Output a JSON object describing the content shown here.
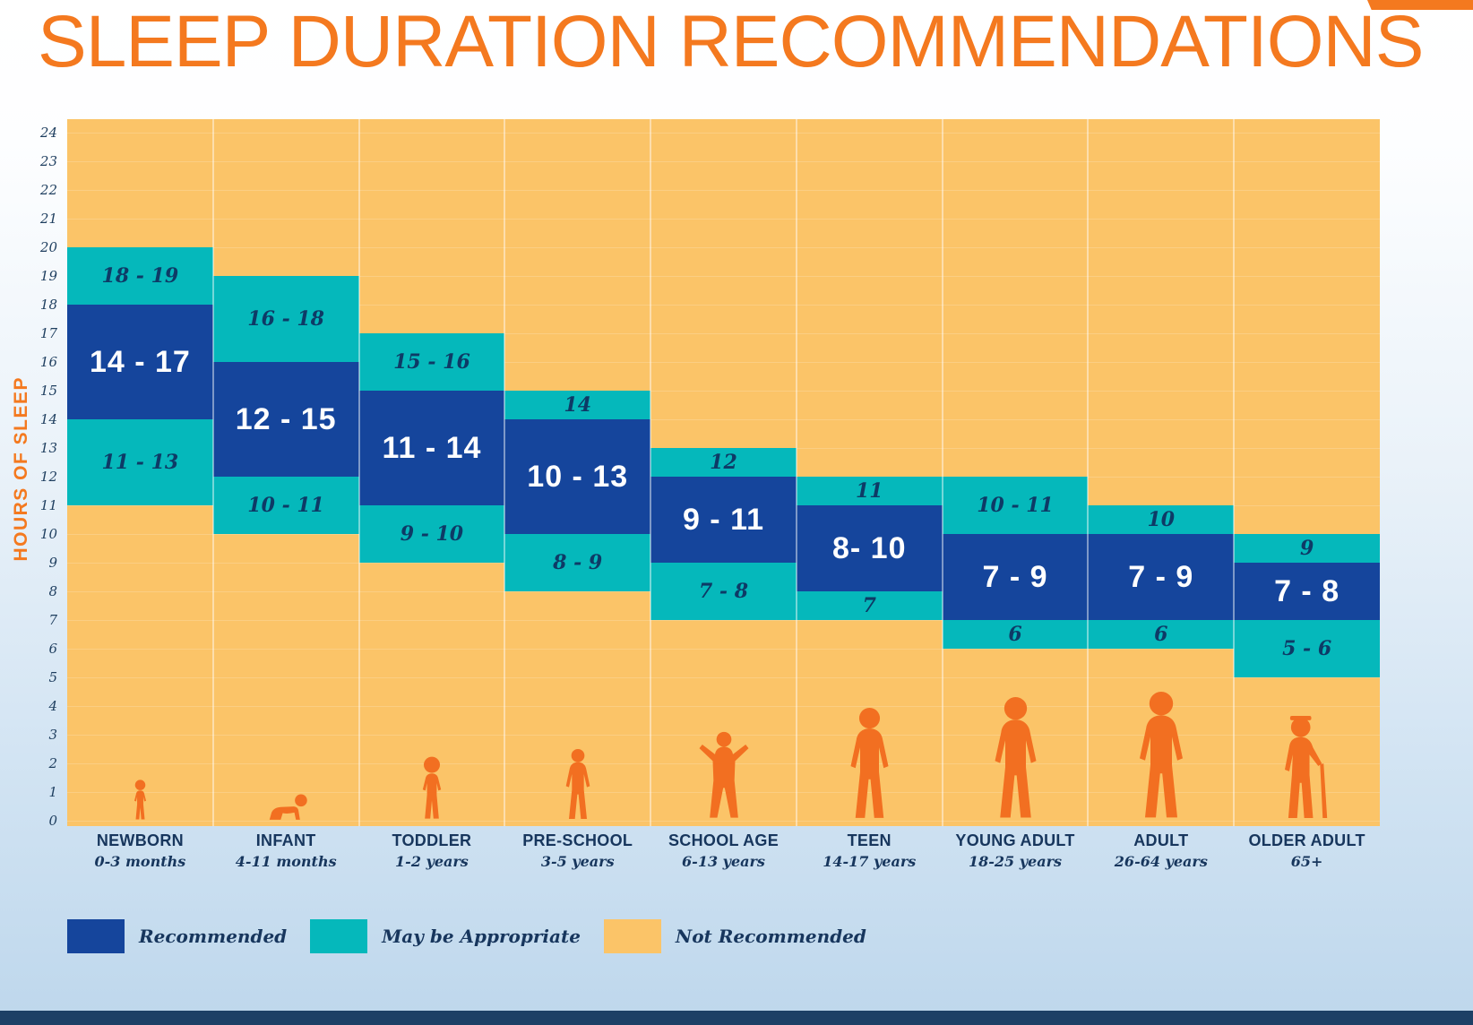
{
  "page": {
    "title": "SLEEP DURATION RECOMMENDATIONS"
  },
  "colors": {
    "recommended": "#15459C",
    "may_be_appropriate": "#05B8BB",
    "not_recommended": "#FBC468",
    "title": "#F4791F",
    "figures": "#F26F21",
    "text_navy": "#17365D",
    "footer_bar": "#1D4066"
  },
  "legend": [
    {
      "label": "Recommended",
      "color_key": "recommended"
    },
    {
      "label": "May be Appropriate",
      "color_key": "may_be_appropriate"
    },
    {
      "label": "Not Recommended",
      "color_key": "not_recommended"
    }
  ],
  "chart_data": {
    "type": "stacked-range-bar",
    "title": "SLEEP DURATION RECOMMENDATIONS",
    "ylabel": "HOURS OF SLEEP",
    "ylim": [
      0,
      24
    ],
    "y_ticks": [
      0,
      1,
      2,
      3,
      4,
      5,
      6,
      7,
      8,
      9,
      10,
      11,
      12,
      13,
      14,
      15,
      16,
      17,
      18,
      19,
      20,
      21,
      22,
      23,
      24
    ],
    "grid": {
      "vertical_column_separators": true,
      "horizontal_hour_lines": "faint"
    },
    "legend_position": "bottom-left",
    "background_meaning": "Not Recommended",
    "groups": [
      {
        "name": "NEWBORN",
        "age": "0-3 months",
        "figure": "baby",
        "may_high": {
          "label": "18 - 19",
          "from": 18,
          "to": 20
        },
        "recommended": {
          "label": "14 - 17",
          "from": 14,
          "to": 18
        },
        "may_low": {
          "label": "11 - 13",
          "from": 11,
          "to": 14
        }
      },
      {
        "name": "INFANT",
        "age": "4-11 months",
        "figure": "crawler",
        "may_high": {
          "label": "16 - 18",
          "from": 16,
          "to": 19
        },
        "recommended": {
          "label": "12 - 15",
          "from": 12,
          "to": 16
        },
        "may_low": {
          "label": "10 - 11",
          "from": 10,
          "to": 12
        }
      },
      {
        "name": "TODDLER",
        "age": "1-2 years",
        "figure": "toddler",
        "may_high": {
          "label": "15 - 16",
          "from": 15,
          "to": 17
        },
        "recommended": {
          "label": "11 - 14",
          "from": 11,
          "to": 15
        },
        "may_low": {
          "label": "9 - 10",
          "from": 9,
          "to": 11
        }
      },
      {
        "name": "PRE-SCHOOL",
        "age": "3-5 years",
        "figure": "child",
        "may_high": {
          "label": "14",
          "from": 14,
          "to": 15
        },
        "recommended": {
          "label": "10 - 13",
          "from": 10,
          "to": 14
        },
        "may_low": {
          "label": "8 - 9",
          "from": 8,
          "to": 10
        }
      },
      {
        "name": "SCHOOL AGE",
        "age": "6-13 years",
        "figure": "kid",
        "may_high": {
          "label": "12",
          "from": 12,
          "to": 13
        },
        "recommended": {
          "label": "9 - 11",
          "from": 9,
          "to": 12
        },
        "may_low": {
          "label": "7 - 8",
          "from": 7,
          "to": 9
        }
      },
      {
        "name": "TEEN",
        "age": "14-17 years",
        "figure": "teen",
        "may_high": {
          "label": "11",
          "from": 11,
          "to": 12
        },
        "recommended": {
          "label": "8- 10",
          "from": 8,
          "to": 11
        },
        "may_low": {
          "label": "7",
          "from": 7,
          "to": 8
        }
      },
      {
        "name": "YOUNG ADULT",
        "age": "18-25 years",
        "figure": "young_adult",
        "may_high": {
          "label": "10 - 11",
          "from": 10,
          "to": 12
        },
        "recommended": {
          "label": "7 - 9",
          "from": 7,
          "to": 10
        },
        "may_low": {
          "label": "6",
          "from": 6,
          "to": 7
        }
      },
      {
        "name": "ADULT",
        "age": "26-64 years",
        "figure": "adult",
        "may_high": {
          "label": "10",
          "from": 10,
          "to": 11
        },
        "recommended": {
          "label": "7 - 9",
          "from": 7,
          "to": 10
        },
        "may_low": {
          "label": "6",
          "from": 6,
          "to": 7
        }
      },
      {
        "name": "OLDER ADULT",
        "age": "65+",
        "figure": "older_adult",
        "may_high": {
          "label": "9",
          "from": 9,
          "to": 10
        },
        "recommended": {
          "label": "7 - 8",
          "from": 7,
          "to": 9
        },
        "may_low": {
          "label": "5 - 6",
          "from": 5,
          "to": 7
        }
      }
    ]
  }
}
